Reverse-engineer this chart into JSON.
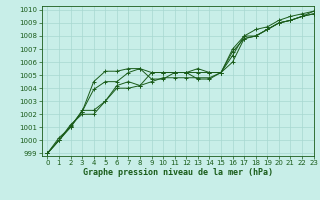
{
  "title": "Graphe pression niveau de la mer (hPa)",
  "bg_color": "#c8eee8",
  "grid_color": "#a8d8d0",
  "line_color": "#1a5c1a",
  "xlim": [
    -0.5,
    23
  ],
  "ylim": [
    998.8,
    1010.3
  ],
  "xticks": [
    0,
    1,
    2,
    3,
    4,
    5,
    6,
    7,
    8,
    9,
    10,
    11,
    12,
    13,
    14,
    15,
    16,
    17,
    18,
    19,
    20,
    21,
    22,
    23
  ],
  "yticks": [
    999,
    1000,
    1001,
    1002,
    1003,
    1004,
    1005,
    1006,
    1007,
    1008,
    1009,
    1010
  ],
  "series": [
    [
      999.0,
      1000.0,
      1001.1,
      1002.2,
      1003.9,
      1004.5,
      1004.5,
      1005.2,
      1005.5,
      1005.2,
      1005.2,
      1005.2,
      1005.2,
      1005.2,
      1005.2,
      1005.2,
      1006.8,
      1007.8,
      1008.0,
      1008.5,
      1009.0,
      1009.2,
      1009.5,
      1009.7
    ],
    [
      999.0,
      1000.0,
      1001.2,
      1002.0,
      1002.0,
      1003.0,
      1004.0,
      1004.0,
      1004.2,
      1004.5,
      1004.8,
      1004.8,
      1004.8,
      1004.8,
      1004.8,
      1005.2,
      1006.0,
      1007.8,
      1008.0,
      1008.5,
      1009.0,
      1009.2,
      1009.5,
      1009.7
    ],
    [
      999.0,
      1000.0,
      1001.0,
      1002.2,
      1004.5,
      1005.3,
      1005.3,
      1005.5,
      1005.5,
      1004.7,
      1004.7,
      1005.2,
      1005.2,
      1005.5,
      1005.2,
      1005.2,
      1007.0,
      1008.0,
      1008.5,
      1008.7,
      1009.2,
      1009.5,
      1009.7,
      1009.9
    ],
    [
      999.0,
      1000.2,
      1001.0,
      1002.3,
      1002.3,
      1003.0,
      1004.2,
      1004.5,
      1004.2,
      1005.2,
      1005.2,
      1005.2,
      1005.2,
      1004.7,
      1004.7,
      1005.2,
      1006.5,
      1008.0,
      1008.0,
      1008.5,
      1009.0,
      1009.2,
      1009.5,
      1009.9
    ]
  ],
  "tick_fontsize": 5,
  "label_fontsize": 6,
  "title_fontsize": 6
}
